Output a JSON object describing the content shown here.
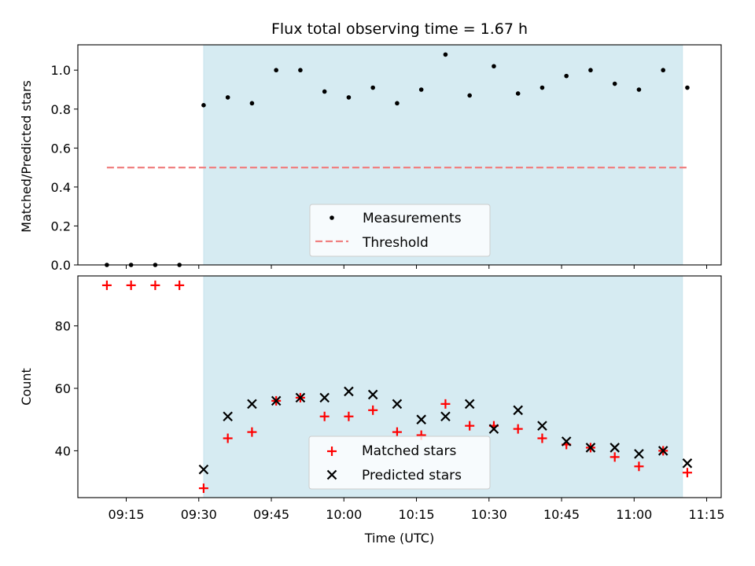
{
  "chart_data": [
    {
      "type": "scatter",
      "title": "Flux total observing time = 1.67 h",
      "xlabel": "",
      "ylabel": "Matched/Predicted stars",
      "ylim": [
        0,
        1.13
      ],
      "yticks": [
        "0.0",
        "0.2",
        "0.4",
        "0.6",
        "0.8",
        "1.0"
      ],
      "ytick_values": [
        0,
        0.2,
        0.4,
        0.6,
        0.8,
        1.0
      ],
      "xlim_minutes": [
        545,
        678
      ],
      "shaded_span_minutes": [
        571,
        670
      ],
      "shade_color": "#add8e6",
      "legend_position": "lower-center",
      "series": [
        {
          "name": "Measurements",
          "marker": "dot",
          "color": "#000000",
          "x_minutes": [
            551,
            556,
            561,
            566,
            571,
            576,
            581,
            586,
            591,
            596,
            601,
            606,
            611,
            616,
            621,
            626,
            631,
            636,
            641,
            646,
            651,
            656,
            661,
            666,
            671
          ],
          "values": [
            0,
            0,
            0,
            0,
            0.82,
            0.86,
            0.83,
            1.0,
            1.0,
            0.89,
            0.86,
            0.91,
            0.83,
            0.9,
            1.08,
            0.87,
            1.02,
            0.88,
            0.91,
            0.97,
            1.0,
            0.93,
            0.9,
            1.0,
            0.91
          ]
        },
        {
          "name": "Threshold",
          "style": "dashed",
          "color": "#f08080",
          "x_minutes": [
            551,
            671
          ],
          "values": [
            0.5,
            0.5
          ]
        }
      ]
    },
    {
      "type": "scatter",
      "title": "",
      "xlabel": "Time (UTC)",
      "ylabel": "Count",
      "ylim": [
        25,
        96
      ],
      "yticks": [
        "40",
        "60",
        "80"
      ],
      "ytick_values": [
        40,
        60,
        80
      ],
      "xlim_minutes": [
        545,
        678
      ],
      "xtick_minutes": [
        555,
        570,
        585,
        600,
        615,
        630,
        645,
        660,
        675
      ],
      "xticks": [
        "09:15",
        "09:30",
        "09:45",
        "10:00",
        "10:15",
        "10:30",
        "10:45",
        "11:00",
        "11:15"
      ],
      "shaded_span_minutes": [
        571,
        670
      ],
      "shade_color": "#add8e6",
      "legend_position": "lower-center",
      "series": [
        {
          "name": "Matched stars",
          "marker": "plus",
          "color": "#ff0000",
          "x_minutes": [
            551,
            556,
            561,
            566,
            571,
            576,
            581,
            586,
            591,
            596,
            601,
            606,
            611,
            616,
            621,
            626,
            631,
            636,
            641,
            646,
            651,
            656,
            661,
            666,
            671
          ],
          "values": [
            93,
            93,
            93,
            93,
            28,
            44,
            46,
            56,
            57,
            51,
            51,
            53,
            46,
            45,
            55,
            48,
            48,
            47,
            44,
            42,
            41,
            38,
            35,
            40,
            33
          ]
        },
        {
          "name": "Predicted stars",
          "marker": "x",
          "color": "#000000",
          "x_minutes": [
            571,
            576,
            581,
            586,
            591,
            596,
            601,
            606,
            611,
            616,
            621,
            626,
            631,
            636,
            641,
            646,
            651,
            656,
            661,
            666,
            671
          ],
          "values": [
            34,
            51,
            55,
            56,
            57,
            57,
            59,
            58,
            55,
            50,
            51,
            55,
            47,
            53,
            48,
            43,
            41,
            41,
            39,
            40,
            36
          ]
        }
      ]
    }
  ]
}
